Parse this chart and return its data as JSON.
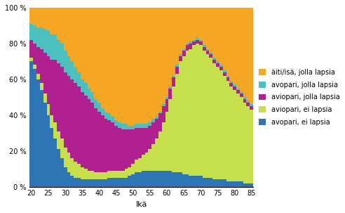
{
  "ages": [
    20,
    21,
    22,
    23,
    24,
    25,
    26,
    27,
    28,
    29,
    30,
    31,
    32,
    33,
    34,
    35,
    36,
    37,
    38,
    39,
    40,
    41,
    42,
    43,
    44,
    45,
    46,
    47,
    48,
    49,
    50,
    51,
    52,
    53,
    54,
    55,
    56,
    57,
    58,
    59,
    60,
    61,
    62,
    63,
    64,
    65,
    66,
    67,
    68,
    69,
    70,
    71,
    72,
    73,
    74,
    75,
    76,
    77,
    78,
    79,
    80,
    81,
    82,
    83,
    84,
    85
  ],
  "avopari_ei_lapsia": [
    70,
    66,
    60,
    54,
    47,
    40,
    33,
    27,
    21,
    16,
    11,
    8,
    6,
    5,
    5,
    4,
    4,
    4,
    4,
    4,
    4,
    4,
    4,
    5,
    5,
    5,
    5,
    5,
    5,
    6,
    7,
    8,
    8,
    9,
    9,
    9,
    9,
    9,
    9,
    9,
    9,
    9,
    8,
    8,
    8,
    7,
    7,
    6,
    6,
    6,
    6,
    5,
    5,
    5,
    4,
    4,
    4,
    4,
    3,
    3,
    3,
    3,
    3,
    2,
    2,
    2
  ],
  "aviopari_ei_lapsia": [
    2,
    2,
    3,
    4,
    5,
    6,
    7,
    9,
    10,
    11,
    11,
    11,
    10,
    9,
    8,
    7,
    6,
    5,
    5,
    4,
    4,
    4,
    4,
    4,
    4,
    4,
    4,
    4,
    5,
    5,
    6,
    7,
    8,
    9,
    10,
    12,
    15,
    18,
    22,
    27,
    33,
    40,
    48,
    55,
    62,
    66,
    69,
    71,
    73,
    74,
    73,
    71,
    69,
    67,
    65,
    63,
    61,
    58,
    56,
    53,
    51,
    49,
    47,
    45,
    43,
    41
  ],
  "aviopari_jolla_lapsia": [
    10,
    12,
    15,
    19,
    23,
    27,
    31,
    35,
    38,
    40,
    42,
    43,
    44,
    44,
    43,
    42,
    41,
    40,
    38,
    36,
    34,
    32,
    30,
    28,
    27,
    25,
    24,
    23,
    22,
    21,
    19,
    18,
    17,
    15,
    14,
    13,
    12,
    11,
    10,
    9,
    7,
    6,
    5,
    4,
    3,
    3,
    3,
    3,
    2,
    2,
    2,
    2,
    2,
    2,
    2,
    2,
    2,
    2,
    2,
    2,
    2,
    2,
    2,
    2,
    2,
    2
  ],
  "avopari_jolla_lapsia": [
    9,
    10,
    11,
    12,
    13,
    14,
    14,
    14,
    13,
    13,
    12,
    11,
    10,
    9,
    8,
    7,
    7,
    6,
    6,
    5,
    5,
    4,
    4,
    4,
    3,
    3,
    3,
    3,
    3,
    2,
    2,
    2,
    2,
    2,
    2,
    2,
    2,
    1,
    1,
    1,
    1,
    1,
    1,
    1,
    1,
    1,
    1,
    1,
    1,
    1,
    1,
    1,
    1,
    1,
    1,
    1,
    1,
    1,
    1,
    1,
    1,
    1,
    1,
    1,
    1,
    1
  ],
  "aiti_isa_jolla_lapsia": [
    9,
    10,
    11,
    11,
    12,
    13,
    15,
    15,
    18,
    20,
    24,
    27,
    30,
    33,
    36,
    40,
    42,
    45,
    47,
    51,
    53,
    56,
    58,
    59,
    61,
    63,
    64,
    65,
    65,
    66,
    66,
    65,
    65,
    65,
    65,
    64,
    62,
    61,
    58,
    54,
    50,
    44,
    38,
    32,
    26,
    23,
    20,
    19,
    18,
    17,
    18,
    21,
    23,
    25,
    28,
    30,
    32,
    35,
    38,
    41,
    43,
    45,
    47,
    50,
    52,
    54
  ],
  "colors": {
    "avopari_ei_lapsia": "#2E75B6",
    "aviopari_ei_lapsia": "#C5E04A",
    "aviopari_jolla_lapsia": "#B02090",
    "avopari_jolla_lapsia": "#4CBFBF",
    "aiti_isa_jolla_lapsia": "#F5A623"
  },
  "legend_labels_ordered": [
    "aiti_isa_jolla_lapsia",
    "avopari_jolla_lapsia",
    "aviopari_jolla_lapsia",
    "aviopari_ei_lapsia",
    "avopari_ei_lapsia"
  ],
  "legend_display": [
    "äiti/isä, jolla lapsia",
    "avopari, jolla lapsia",
    "aviopari, jolla lapsia",
    "aviopari, ei lapsia",
    "avopari, ei lapsia"
  ],
  "xlabel": "Ikä",
  "ylabel_ticks": [
    "0 %",
    "20 %",
    "40 %",
    "60 %",
    "80 %",
    "100 %"
  ],
  "xtick_labels": [
    "20",
    "25",
    "30",
    "35",
    "40",
    "45",
    "50",
    "55",
    "60",
    "65",
    "70",
    "75",
    "80",
    "85"
  ],
  "background_color": "#ffffff",
  "grid_color": "#cccccc"
}
